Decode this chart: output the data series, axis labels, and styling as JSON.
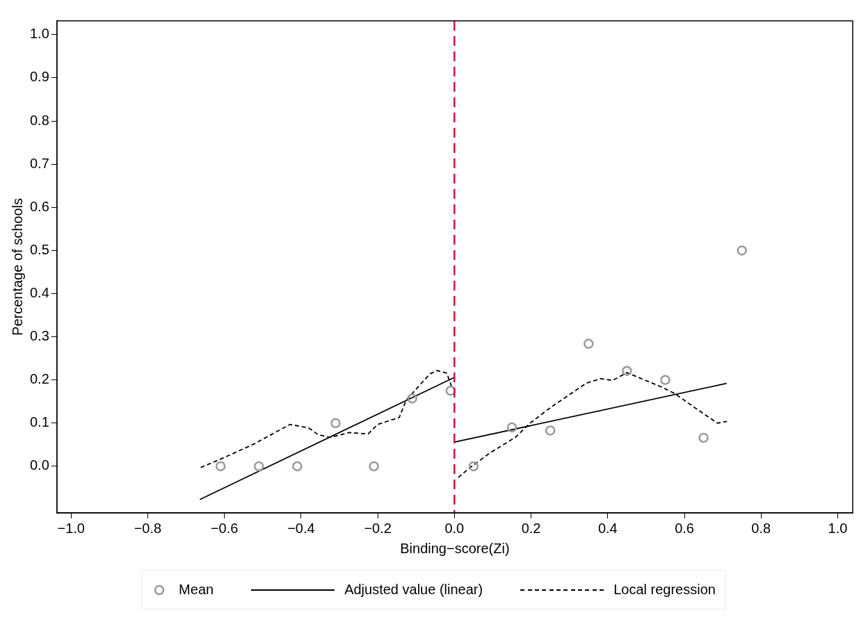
{
  "chart_data": {
    "type": "scatter",
    "xlabel": "Binding−score(Zi)",
    "ylabel": "Percentage of schools",
    "xlim": [
      -1.037,
      1.039
    ],
    "ylim": [
      -0.108,
      1.032
    ],
    "xticks": [
      {
        "value": -1,
        "label": "−1.0"
      },
      {
        "value": -0.8,
        "label": "−0.8"
      },
      {
        "value": -0.6,
        "label": "−0.6"
      },
      {
        "value": -0.4,
        "label": "−0.4"
      },
      {
        "value": -0.2,
        "label": "−0.2"
      },
      {
        "value": 0,
        "label": "0.0"
      },
      {
        "value": 0.2,
        "label": "0.2"
      },
      {
        "value": 0.4,
        "label": "0.4"
      },
      {
        "value": 0.6,
        "label": "0.6"
      },
      {
        "value": 0.8,
        "label": "0.8"
      },
      {
        "value": 1,
        "label": "1.0"
      }
    ],
    "yticks": [
      {
        "value": 0,
        "label": "0.0"
      },
      0.1,
      0.2,
      0.3,
      0.4,
      0.5,
      0.6,
      0.7,
      0.8,
      0.9,
      {
        "value": 1,
        "label": "1.0"
      }
    ],
    "grid": false,
    "legend": "bottom",
    "series": [
      {
        "name": "Mean",
        "marker": "circle",
        "color": "#999999",
        "x": [
          -0.61,
          -0.51,
          -0.41,
          -0.31,
          -0.21,
          -0.11,
          -0.01,
          0.05,
          0.15,
          0.25,
          0.35,
          0.45,
          0.55,
          0.65,
          0.75
        ],
        "values": [
          0,
          0,
          0,
          0.1,
          0,
          0.157,
          0.175,
          0,
          0.09,
          0.083,
          0.284,
          0.221,
          0.2,
          0.066,
          0.5
        ]
      },
      {
        "name": "Adjusted value (linear)",
        "type": "line",
        "marker": "none",
        "line_style": "solid",
        "color": "#000000",
        "x": [
          -0.664,
          0
        ],
        "values": [
          -0.077,
          0.206
        ]
      },
      {
        "type": "line",
        "marker": "none",
        "line_style": "solid",
        "color": "#000000",
        "x": [
          0,
          0.71
        ],
        "values": [
          0.056,
          0.192
        ]
      },
      {
        "name": "Local regression",
        "type": "line",
        "marker": "none",
        "line_style": "dashed",
        "color": "#000000",
        "x": [
          -0.662,
          -0.609,
          -0.522,
          -0.429,
          -0.38,
          -0.355,
          -0.324,
          -0.275,
          -0.225,
          -0.2,
          -0.144,
          -0.126,
          -0.064,
          -0.045,
          -0.02,
          -0.005
        ],
        "values": [
          -0.003,
          0.017,
          0.052,
          0.097,
          0.089,
          0.073,
          0.067,
          0.078,
          0.075,
          0.097,
          0.113,
          0.153,
          0.214,
          0.222,
          0.216,
          0.179
        ]
      },
      {
        "type": "line",
        "marker": "none",
        "line_style": "dashed",
        "color": "#000000",
        "x": [
          0.01,
          0.035,
          0.091,
          0.159,
          0.196,
          0.252,
          0.345,
          0.382,
          0.413,
          0.45,
          0.537,
          0.574,
          0.63,
          0.686,
          0.711
        ],
        "values": [
          -0.026,
          -0.007,
          0.03,
          0.067,
          0.099,
          0.137,
          0.193,
          0.203,
          0.199,
          0.217,
          0.185,
          0.169,
          0.134,
          0.1,
          0.104
        ]
      }
    ],
    "ref_lines": [
      {
        "axis": "x",
        "value": 0,
        "color": "#d0103a",
        "line_style": "dashed"
      }
    ]
  }
}
